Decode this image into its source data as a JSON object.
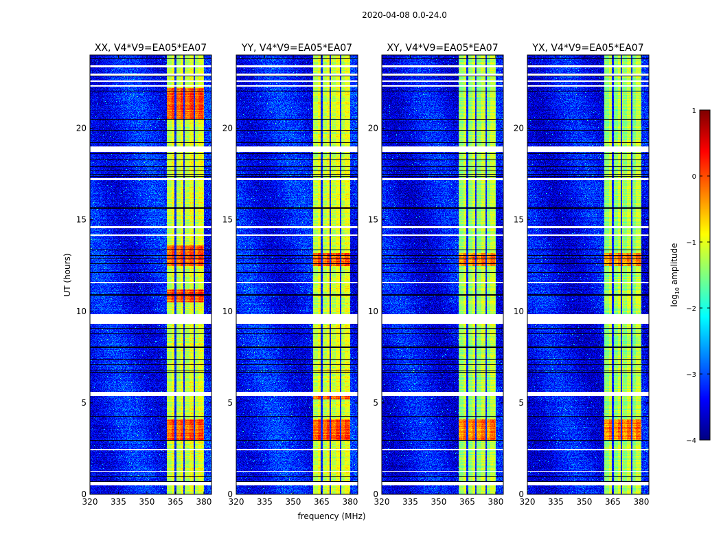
{
  "suptitle": "2020-04-08 0.0-24.0",
  "xlabel": "frequency (MHz)",
  "ylabel": "UT (hours)",
  "colorbar": {
    "label_main": "log",
    "label_sub": "10",
    "label_rest": " amplitude",
    "ticks": [
      1,
      0,
      -1,
      -2,
      -3,
      -4
    ],
    "tick_labels": [
      "1",
      "0",
      "−1",
      "−2",
      "−3",
      "−4"
    ],
    "clim": [
      -4,
      1
    ],
    "colormap": "jet"
  },
  "chart_data": [
    {
      "type": "heatmap",
      "title": "XX, V4*V9=EA05*EA07",
      "xlim": [
        320,
        384
      ],
      "ylim": [
        0,
        24
      ],
      "xticks": [
        320,
        335,
        350,
        365,
        380
      ],
      "yticks": [
        0,
        5,
        10,
        15,
        20
      ],
      "band_MHz": [
        360.5,
        380
      ],
      "band_level": -1.1,
      "background_level": -3.3,
      "strong_hours": [
        [
          20.5,
          22.2
        ],
        [
          12.5,
          13.6
        ],
        [
          3,
          4.1
        ],
        [
          10.5,
          11.2
        ]
      ]
    },
    {
      "type": "heatmap",
      "title": "YY, V4*V9=EA05*EA07",
      "xlim": [
        320,
        384
      ],
      "ylim": [
        0,
        24
      ],
      "xticks": [
        320,
        335,
        350,
        365,
        380
      ],
      "yticks": [
        0,
        5,
        10,
        15,
        20
      ],
      "band_MHz": [
        360.5,
        380
      ],
      "band_level": -1.1,
      "background_level": -3.3,
      "strong_hours": [
        [
          12.5,
          13.2
        ],
        [
          3,
          4.1
        ],
        [
          5.2,
          5.5
        ]
      ]
    },
    {
      "type": "heatmap",
      "title": "XY, V4*V9=EA05*EA07",
      "xlim": [
        320,
        384
      ],
      "ylim": [
        0,
        24
      ],
      "xticks": [
        320,
        335,
        350,
        365,
        380
      ],
      "yticks": [
        0,
        5,
        10,
        15,
        20
      ],
      "band_MHz": [
        360.5,
        380
      ],
      "band_level": -1.3,
      "background_level": -3.4,
      "strong_hours": [
        [
          3,
          4.1
        ],
        [
          12.5,
          13.2
        ]
      ]
    },
    {
      "type": "heatmap",
      "title": "YX, V4*V9=EA05*EA07",
      "xlim": [
        320,
        384
      ],
      "ylim": [
        0,
        24
      ],
      "xticks": [
        320,
        335,
        350,
        365,
        380
      ],
      "yticks": [
        0,
        5,
        10,
        15,
        20
      ],
      "band_MHz": [
        360.5,
        380
      ],
      "band_level": -1.3,
      "background_level": -3.4,
      "strong_hours": [
        [
          3,
          4.1
        ],
        [
          12.5,
          13.2
        ]
      ]
    }
  ],
  "flagged_hours": [
    [
      23.35,
      23.45
    ],
    [
      22.9,
      23.0
    ],
    [
      22.55,
      22.62
    ],
    [
      22.3,
      22.35
    ],
    [
      18.72,
      19.02
    ],
    [
      17.2,
      17.3
    ],
    [
      14.55,
      14.68
    ],
    [
      14.15,
      14.22
    ],
    [
      11.55,
      11.62
    ],
    [
      9.35,
      9.85
    ],
    [
      5.4,
      5.6
    ],
    [
      2.42,
      2.5
    ],
    [
      1.25,
      1.3
    ],
    [
      0.5,
      0.7
    ]
  ]
}
